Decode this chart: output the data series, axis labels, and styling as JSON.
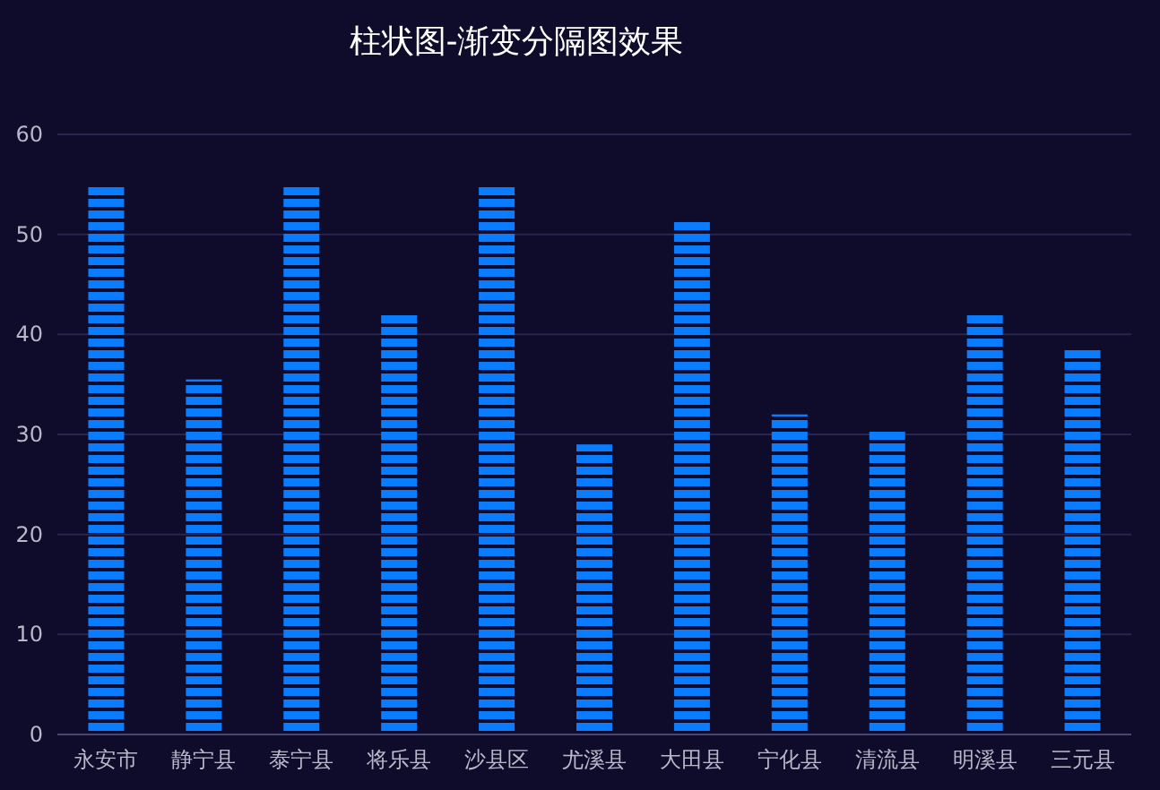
{
  "chart_data": {
    "type": "bar",
    "title": "柱状图-渐变分隔图效果",
    "categories": [
      "永安市",
      "静宁县",
      "泰宁县",
      "将乐县",
      "沙县区",
      "尤溪县",
      "大田县",
      "宁化县",
      "清流县",
      "明溪县",
      "三元县"
    ],
    "values": [
      55,
      35.5,
      55,
      42,
      55,
      29,
      51.5,
      32,
      30.5,
      42,
      38.5
    ],
    "color": "#0a7cff",
    "ylim": [
      0,
      60
    ],
    "yticks": [
      0,
      10,
      20,
      30,
      40,
      50,
      60
    ],
    "grid": "y"
  }
}
